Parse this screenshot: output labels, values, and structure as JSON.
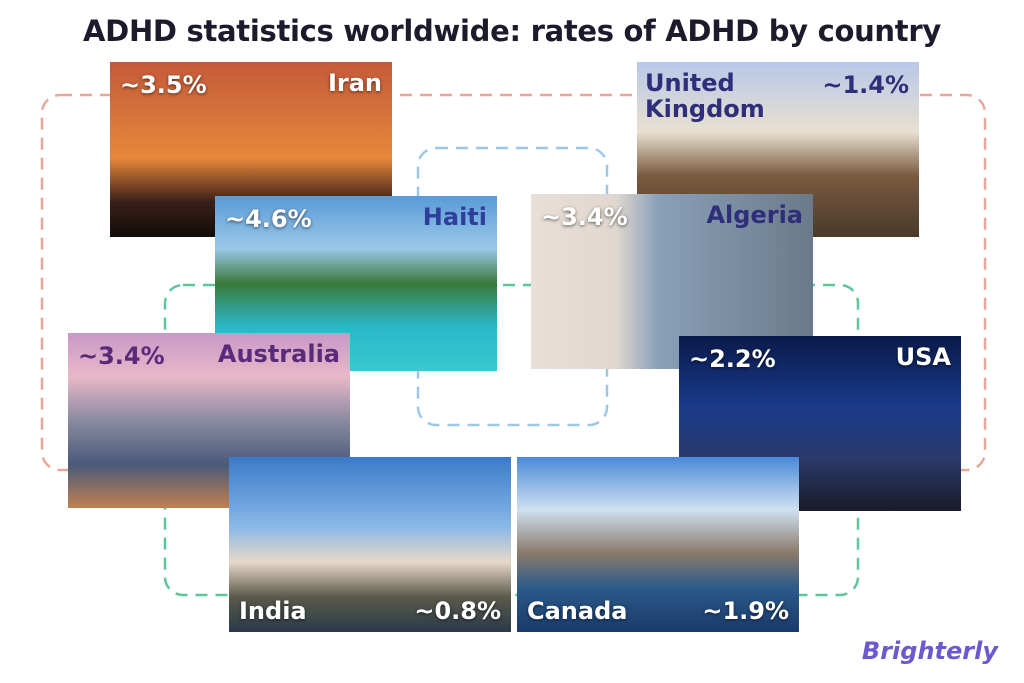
{
  "title": "ADHD statistics worldwide: rates of ADHD by country",
  "cards": [
    {
      "country": "Iran",
      "rate": "~3.5%"
    },
    {
      "country": "United Kingdom",
      "rate": "~1.4%"
    },
    {
      "country": "Haiti",
      "rate": "~4.6%"
    },
    {
      "country": "Algeria",
      "rate": "~3.4%"
    },
    {
      "country": "Australia",
      "rate": "~3.4%"
    },
    {
      "country": "USA",
      "rate": "~2.2%"
    },
    {
      "country": "India",
      "rate": "~0.8%"
    },
    {
      "country": "Canada",
      "rate": "~1.9%"
    }
  ],
  "logo": "Brighterly"
}
